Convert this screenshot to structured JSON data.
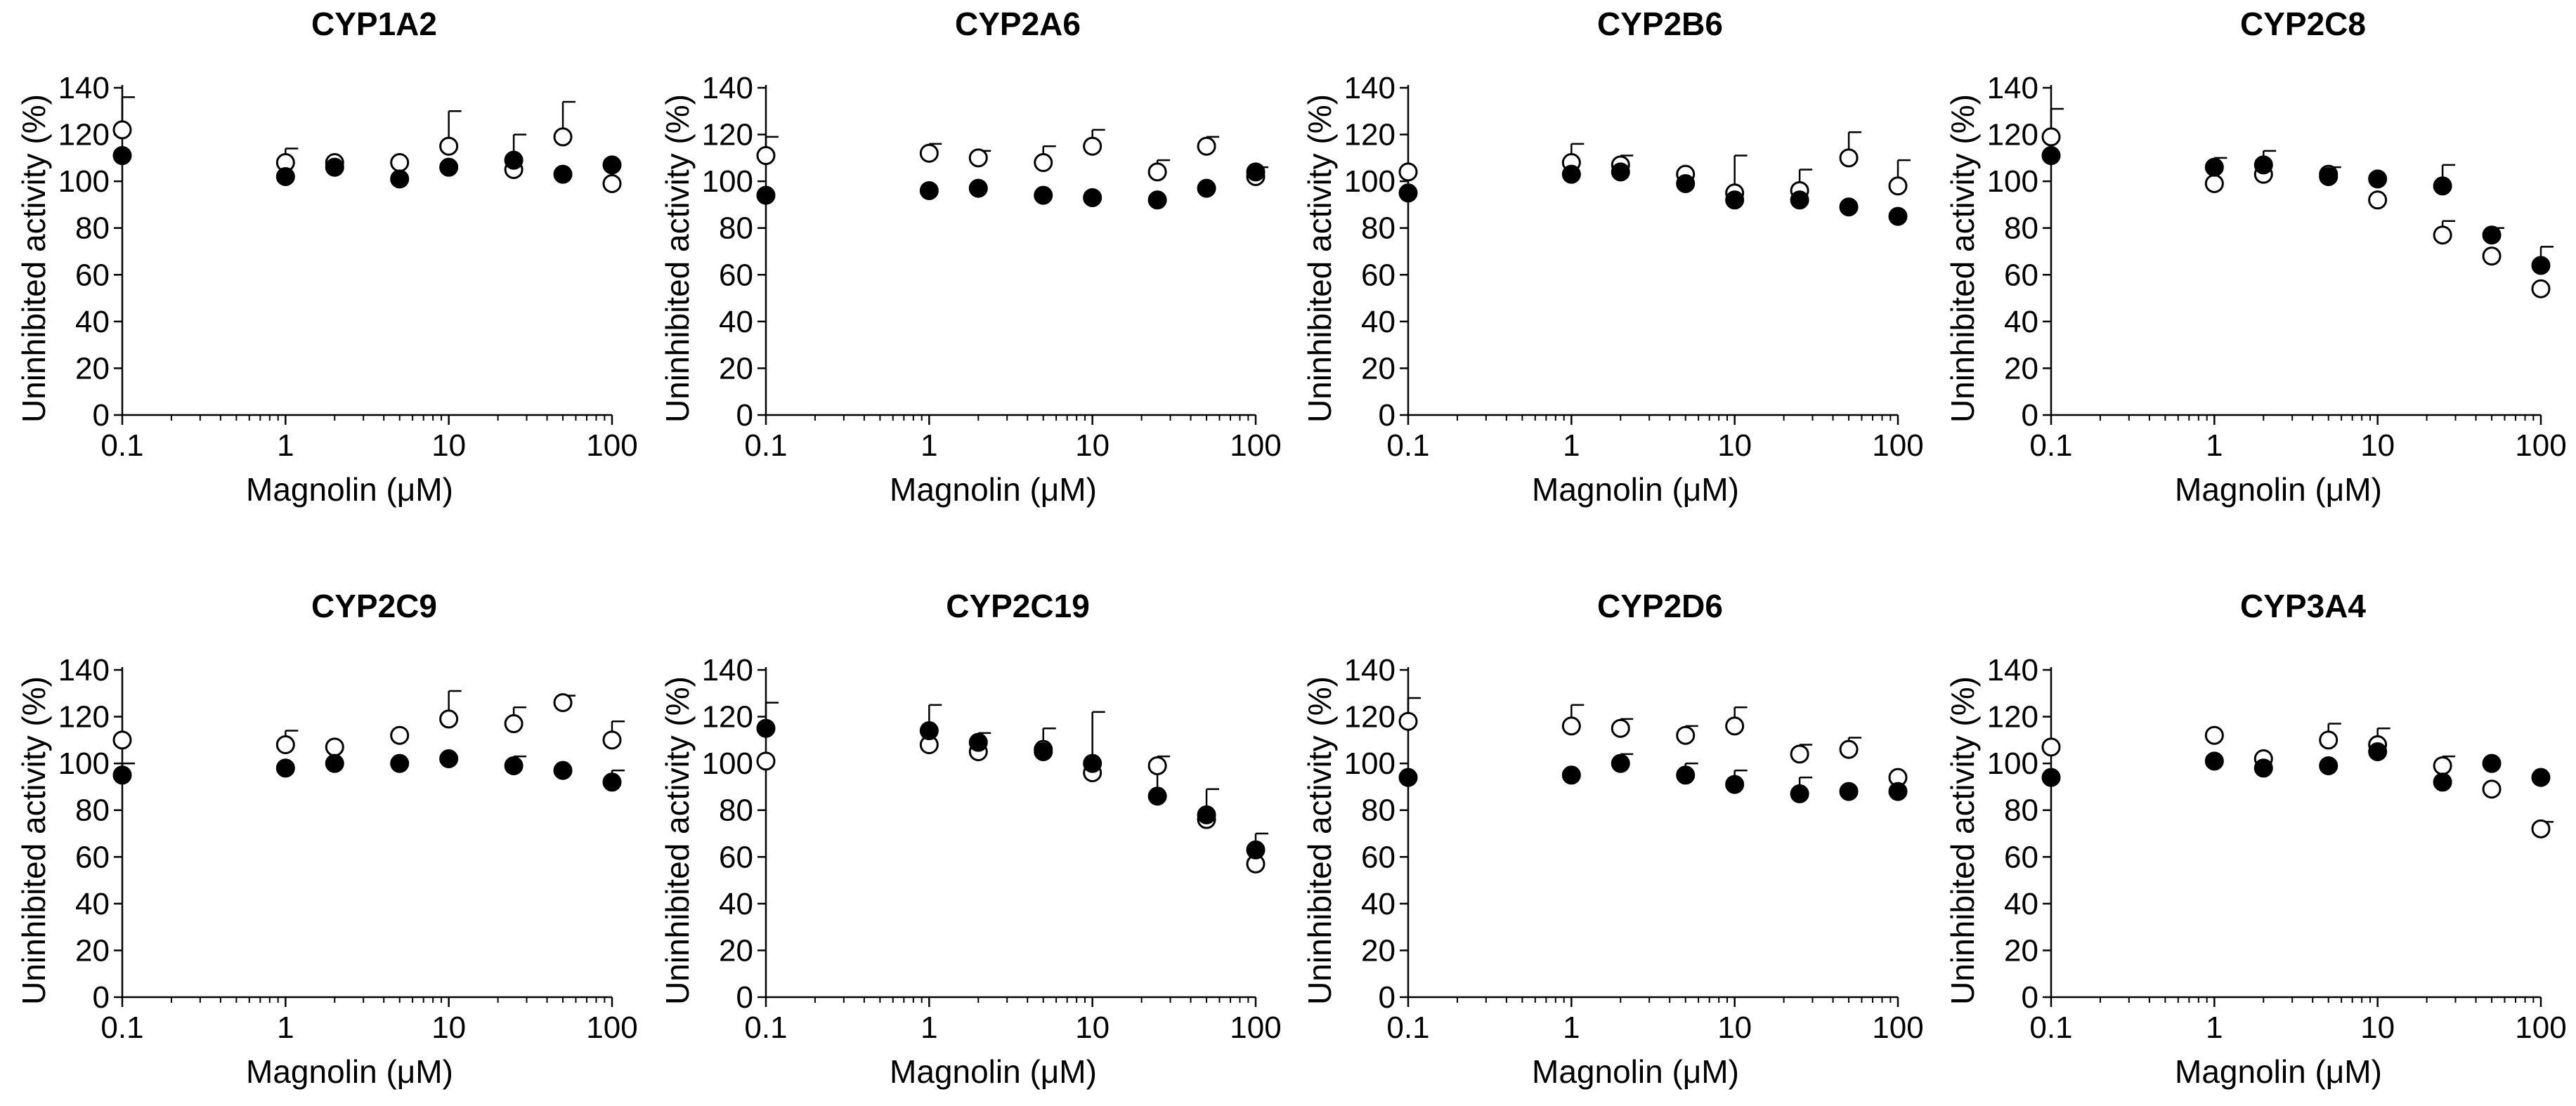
{
  "figure": {
    "x_label": "Magnolin (μM)",
    "y_label": "Uninhibited activity (%)",
    "marker_filled_color": "#000000",
    "marker_open_color": "#ffffff"
  },
  "chart_data": [
    {
      "type": "scatter",
      "title": "CYP1A2",
      "xscale": "log",
      "xlim": [
        0.1,
        100
      ],
      "ylim": [
        0,
        140
      ],
      "xticks": [
        0.1,
        1,
        10,
        100
      ],
      "xtick_labels": [
        "0.1",
        "1",
        "10",
        "100"
      ],
      "yticks": [
        0,
        20,
        40,
        60,
        80,
        100,
        120,
        140
      ],
      "ytick_labels": [
        "0",
        "20",
        "40",
        "60",
        "80",
        "100",
        "120",
        "140"
      ],
      "xlabel": "Magnolin (μM)",
      "ylabel": "Uninhibited activity (%)",
      "series": [
        {
          "name": "filled",
          "marker": "filled-circle",
          "x": [
            0.1,
            1,
            2,
            5,
            10,
            25,
            50,
            100
          ],
          "y": [
            111,
            102,
            106,
            101,
            106,
            109,
            103,
            107
          ],
          "err": [
            0,
            0,
            0,
            0,
            0,
            0,
            0,
            0
          ]
        },
        {
          "name": "open",
          "marker": "open-circle",
          "x": [
            0.1,
            1,
            2,
            5,
            10,
            25,
            50,
            100
          ],
          "y": [
            122,
            108,
            108,
            108,
            115,
            105,
            119,
            99
          ],
          "err": [
            14,
            6,
            0,
            0,
            15,
            15,
            15,
            0
          ]
        }
      ]
    },
    {
      "type": "scatter",
      "title": "CYP2A6",
      "xscale": "log",
      "xlim": [
        0.1,
        100
      ],
      "ylim": [
        0,
        140
      ],
      "xticks": [
        0.1,
        1,
        10,
        100
      ],
      "xtick_labels": [
        "0.1",
        "1",
        "10",
        "100"
      ],
      "yticks": [
        0,
        20,
        40,
        60,
        80,
        100,
        120,
        140
      ],
      "ytick_labels": [
        "0",
        "20",
        "40",
        "60",
        "80",
        "100",
        "120",
        "140"
      ],
      "xlabel": "Magnolin (μM)",
      "ylabel": "Uninhibited activity (%)",
      "series": [
        {
          "name": "filled",
          "marker": "filled-circle",
          "x": [
            0.1,
            1,
            2,
            5,
            10,
            25,
            50,
            100
          ],
          "y": [
            94,
            96,
            97,
            94,
            93,
            92,
            97,
            104
          ],
          "err": [
            0,
            0,
            0,
            0,
            0,
            0,
            0,
            0
          ]
        },
        {
          "name": "open",
          "marker": "open-circle",
          "x": [
            0.1,
            1,
            2,
            5,
            10,
            25,
            50,
            100
          ],
          "y": [
            111,
            112,
            110,
            108,
            115,
            104,
            115,
            102
          ],
          "err": [
            8,
            4,
            3,
            7,
            7,
            5,
            4,
            4
          ]
        }
      ]
    },
    {
      "type": "scatter",
      "title": "CYP2B6",
      "xscale": "log",
      "xlim": [
        0.1,
        100
      ],
      "ylim": [
        0,
        140
      ],
      "xticks": [
        0.1,
        1,
        10,
        100
      ],
      "xtick_labels": [
        "0.1",
        "1",
        "10",
        "100"
      ],
      "yticks": [
        0,
        20,
        40,
        60,
        80,
        100,
        120,
        140
      ],
      "ytick_labels": [
        "0",
        "20",
        "40",
        "60",
        "80",
        "100",
        "120",
        "140"
      ],
      "xlabel": "Magnolin (μM)",
      "ylabel": "Uninhibited activity (%)",
      "series": [
        {
          "name": "filled",
          "marker": "filled-circle",
          "x": [
            0.1,
            1,
            2,
            5,
            10,
            25,
            50,
            100
          ],
          "y": [
            95,
            103,
            104,
            99,
            92,
            92,
            89,
            85
          ],
          "err": [
            0,
            0,
            0,
            0,
            0,
            0,
            0,
            0
          ]
        },
        {
          "name": "open",
          "marker": "open-circle",
          "x": [
            0.1,
            1,
            2,
            5,
            10,
            25,
            50,
            100
          ],
          "y": [
            104,
            108,
            107,
            103,
            95,
            96,
            110,
            98
          ],
          "err": [
            0,
            8,
            4,
            0,
            16,
            9,
            11,
            11
          ]
        }
      ]
    },
    {
      "type": "scatter",
      "title": "CYP2C8",
      "xscale": "log",
      "xlim": [
        0.1,
        100
      ],
      "ylim": [
        0,
        140
      ],
      "xticks": [
        0.1,
        1,
        10,
        100
      ],
      "xtick_labels": [
        "0.1",
        "1",
        "10",
        "100"
      ],
      "yticks": [
        0,
        20,
        40,
        60,
        80,
        100,
        120,
        140
      ],
      "ytick_labels": [
        "0",
        "20",
        "40",
        "60",
        "80",
        "100",
        "120",
        "140"
      ],
      "xlabel": "Magnolin (μM)",
      "ylabel": "Uninhibited activity (%)",
      "series": [
        {
          "name": "filled",
          "marker": "filled-circle",
          "x": [
            0.1,
            1,
            2,
            5,
            10,
            25,
            50,
            100
          ],
          "y": [
            111,
            106,
            107,
            102,
            101,
            98,
            77,
            64
          ],
          "err": [
            0,
            4,
            6,
            4,
            0,
            9,
            3,
            8
          ]
        },
        {
          "name": "open",
          "marker": "open-circle",
          "x": [
            0.1,
            1,
            2,
            5,
            10,
            25,
            50,
            100
          ],
          "y": [
            119,
            99,
            103,
            103,
            92,
            77,
            68,
            54
          ],
          "err": [
            12,
            0,
            0,
            0,
            0,
            6,
            0,
            0
          ]
        }
      ]
    },
    {
      "type": "scatter",
      "title": "CYP2C9",
      "xscale": "log",
      "xlim": [
        0.1,
        100
      ],
      "ylim": [
        0,
        140
      ],
      "xticks": [
        0.1,
        1,
        10,
        100
      ],
      "xtick_labels": [
        "0.1",
        "1",
        "10",
        "100"
      ],
      "yticks": [
        0,
        20,
        40,
        60,
        80,
        100,
        120,
        140
      ],
      "ytick_labels": [
        "0",
        "20",
        "40",
        "60",
        "80",
        "100",
        "120",
        "140"
      ],
      "xlabel": "Magnolin (μM)",
      "ylabel": "Uninhibited activity (%)",
      "series": [
        {
          "name": "filled",
          "marker": "filled-circle",
          "x": [
            0.1,
            1,
            2,
            5,
            10,
            25,
            50,
            100
          ],
          "y": [
            95,
            98,
            100,
            100,
            102,
            99,
            97,
            92
          ],
          "err": [
            5,
            0,
            0,
            0,
            0,
            4,
            0,
            5
          ]
        },
        {
          "name": "open",
          "marker": "open-circle",
          "x": [
            0.1,
            1,
            2,
            5,
            10,
            25,
            50,
            100
          ],
          "y": [
            110,
            108,
            107,
            112,
            119,
            117,
            126,
            110
          ],
          "err": [
            0,
            6,
            0,
            0,
            12,
            7,
            3,
            8
          ]
        }
      ]
    },
    {
      "type": "scatter",
      "title": "CYP2C19",
      "xscale": "log",
      "xlim": [
        0.1,
        100
      ],
      "ylim": [
        0,
        140
      ],
      "xticks": [
        0.1,
        1,
        10,
        100
      ],
      "xtick_labels": [
        "0.1",
        "1",
        "10",
        "100"
      ],
      "yticks": [
        0,
        20,
        40,
        60,
        80,
        100,
        120,
        140
      ],
      "ytick_labels": [
        "0",
        "20",
        "40",
        "60",
        "80",
        "100",
        "120",
        "140"
      ],
      "xlabel": "Magnolin (μM)",
      "ylabel": "Uninhibited activity (%)",
      "series": [
        {
          "name": "filled",
          "marker": "filled-circle",
          "x": [
            0.1,
            1,
            2,
            5,
            10,
            25,
            50,
            100
          ],
          "y": [
            115,
            114,
            109,
            105,
            100,
            86,
            78,
            63
          ],
          "err": [
            11,
            11,
            4,
            10,
            22,
            17,
            11,
            7
          ]
        },
        {
          "name": "open",
          "marker": "open-circle",
          "x": [
            0.1,
            1,
            2,
            5,
            10,
            25,
            50,
            100
          ],
          "y": [
            101,
            108,
            105,
            106,
            96,
            99,
            76,
            57
          ],
          "err": [
            0,
            0,
            0,
            0,
            0,
            0,
            0,
            0
          ]
        }
      ]
    },
    {
      "type": "scatter",
      "title": "CYP2D6",
      "xscale": "log",
      "xlim": [
        0.1,
        100
      ],
      "ylim": [
        0,
        140
      ],
      "xticks": [
        0.1,
        1,
        10,
        100
      ],
      "xtick_labels": [
        "0.1",
        "1",
        "10",
        "100"
      ],
      "yticks": [
        0,
        20,
        40,
        60,
        80,
        100,
        120,
        140
      ],
      "ytick_labels": [
        "0",
        "20",
        "40",
        "60",
        "80",
        "100",
        "120",
        "140"
      ],
      "xlabel": "Magnolin (μM)",
      "ylabel": "Uninhibited activity (%)",
      "series": [
        {
          "name": "filled",
          "marker": "filled-circle",
          "x": [
            0.1,
            1,
            2,
            5,
            10,
            25,
            50,
            100
          ],
          "y": [
            94,
            95,
            100,
            95,
            91,
            87,
            88,
            88
          ],
          "err": [
            0,
            0,
            4,
            5,
            6,
            7,
            0,
            0
          ]
        },
        {
          "name": "open",
          "marker": "open-circle",
          "x": [
            0.1,
            1,
            2,
            5,
            10,
            25,
            50,
            100
          ],
          "y": [
            118,
            116,
            115,
            112,
            116,
            104,
            106,
            94
          ],
          "err": [
            10,
            9,
            4,
            4,
            8,
            4,
            5,
            0
          ]
        }
      ]
    },
    {
      "type": "scatter",
      "title": "CYP3A4",
      "xscale": "log",
      "xlim": [
        0.1,
        100
      ],
      "ylim": [
        0,
        140
      ],
      "xticks": [
        0.1,
        1,
        10,
        100
      ],
      "xtick_labels": [
        "0.1",
        "1",
        "10",
        "100"
      ],
      "yticks": [
        0,
        20,
        40,
        60,
        80,
        100,
        120,
        140
      ],
      "ytick_labels": [
        "0",
        "20",
        "40",
        "60",
        "80",
        "100",
        "120",
        "140"
      ],
      "xlabel": "Magnolin (μM)",
      "ylabel": "Uninhibited activity (%)",
      "series": [
        {
          "name": "filled",
          "marker": "filled-circle",
          "x": [
            0.1,
            1,
            2,
            5,
            10,
            25,
            50,
            100
          ],
          "y": [
            94,
            101,
            98,
            99,
            105,
            92,
            100,
            94
          ],
          "err": [
            0,
            0,
            0,
            0,
            0,
            0,
            0,
            0
          ]
        },
        {
          "name": "open",
          "marker": "open-circle",
          "x": [
            0.1,
            1,
            2,
            5,
            10,
            25,
            50,
            100
          ],
          "y": [
            107,
            112,
            102,
            110,
            108,
            99,
            89,
            72
          ],
          "err": [
            0,
            0,
            0,
            7,
            7,
            4,
            0,
            3
          ]
        }
      ]
    }
  ]
}
